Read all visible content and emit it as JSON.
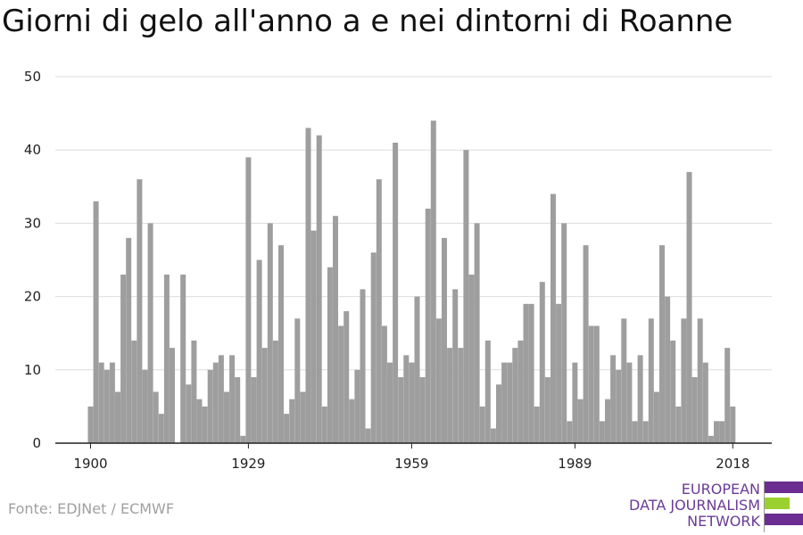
{
  "chart_data": {
    "type": "bar",
    "title": "Giorni di gelo all'anno a e nei dintorni di Roanne",
    "x_start": 1900,
    "x_end": 2018,
    "values": [
      5,
      33,
      11,
      10,
      11,
      7,
      23,
      28,
      14,
      36,
      10,
      30,
      7,
      4,
      23,
      13,
      0,
      23,
      8,
      14,
      6,
      5,
      10,
      11,
      12,
      7,
      12,
      9,
      1,
      39,
      9,
      25,
      13,
      30,
      14,
      27,
      4,
      6,
      17,
      7,
      43,
      29,
      42,
      5,
      24,
      31,
      16,
      18,
      6,
      10,
      21,
      2,
      26,
      36,
      16,
      11,
      41,
      9,
      12,
      11,
      20,
      9,
      32,
      44,
      17,
      28,
      13,
      21,
      13,
      40,
      23,
      30,
      5,
      14,
      2,
      8,
      11,
      11,
      13,
      14,
      19,
      19,
      5,
      22,
      9,
      34,
      19,
      30,
      3,
      11,
      6,
      27,
      16,
      16,
      3,
      6,
      12,
      10,
      17,
      11,
      3,
      12,
      3,
      17,
      7,
      27,
      20,
      14,
      5,
      17,
      37,
      9,
      17,
      11,
      1,
      3,
      3,
      13,
      5
    ],
    "x_ticks": [
      "1900",
      "1929",
      "1959",
      "1989",
      "2018"
    ],
    "y_ticks": [
      "0",
      "10",
      "20",
      "30",
      "40",
      "50"
    ],
    "ylim": [
      0,
      50
    ],
    "grid": true,
    "bar_color": "#9e9e9e"
  },
  "source": "Fonte: EDJNet / ECMWF",
  "logo": {
    "lines": [
      "EUROPEAN",
      "DATA JOURNALISM",
      "NETWORK"
    ],
    "colors": [
      "#6b2d91",
      "#9bd12e",
      "#6b2d91"
    ]
  }
}
